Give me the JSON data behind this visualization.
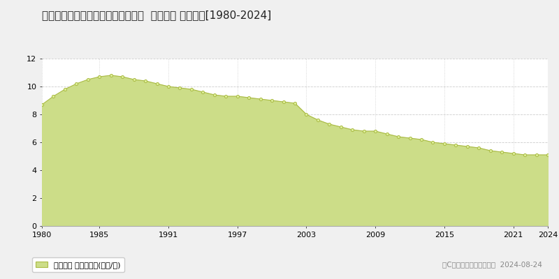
{
  "title": "北海道登別市常盤町１丁目３１番２  地価公示 地価推移[1980-2024]",
  "years": [
    1980,
    1981,
    1982,
    1983,
    1984,
    1985,
    1986,
    1987,
    1988,
    1989,
    1990,
    1991,
    1992,
    1993,
    1994,
    1995,
    1996,
    1997,
    1998,
    1999,
    2000,
    2001,
    2002,
    2003,
    2004,
    2005,
    2006,
    2007,
    2008,
    2009,
    2010,
    2011,
    2012,
    2013,
    2014,
    2015,
    2016,
    2017,
    2018,
    2019,
    2020,
    2021,
    2022,
    2023,
    2024
  ],
  "values": [
    8.7,
    9.3,
    9.8,
    10.2,
    10.5,
    10.7,
    10.8,
    10.7,
    10.5,
    10.4,
    10.2,
    10.0,
    9.9,
    9.8,
    9.6,
    9.4,
    9.3,
    9.3,
    9.2,
    9.1,
    9.0,
    8.9,
    8.8,
    8.0,
    7.6,
    7.3,
    7.1,
    6.9,
    6.8,
    6.8,
    6.6,
    6.4,
    6.3,
    6.2,
    6.0,
    5.9,
    5.8,
    5.7,
    5.6,
    5.4,
    5.3,
    5.2,
    5.1,
    5.1,
    5.1
  ],
  "fill_color": "#ccdd88",
  "line_color": "#aabb44",
  "marker_color": "#ddee99",
  "marker_edge_color": "#aabb44",
  "bg_color": "#f0f0f0",
  "plot_bg_color": "#ffffff",
  "grid_color": "#cccccc",
  "ylim": [
    0,
    12
  ],
  "yticks": [
    0,
    2,
    4,
    6,
    8,
    10,
    12
  ],
  "xticks": [
    1980,
    1985,
    1991,
    1997,
    2003,
    2009,
    2015,
    2021,
    2024
  ],
  "legend_label": "地価公示 平均坪単価(万円/坪)",
  "copyright_text": "（C）土地価格ドットコム  2024-08-24",
  "title_fontsize": 11,
  "tick_fontsize": 8,
  "legend_fontsize": 8,
  "copyright_fontsize": 7.5
}
